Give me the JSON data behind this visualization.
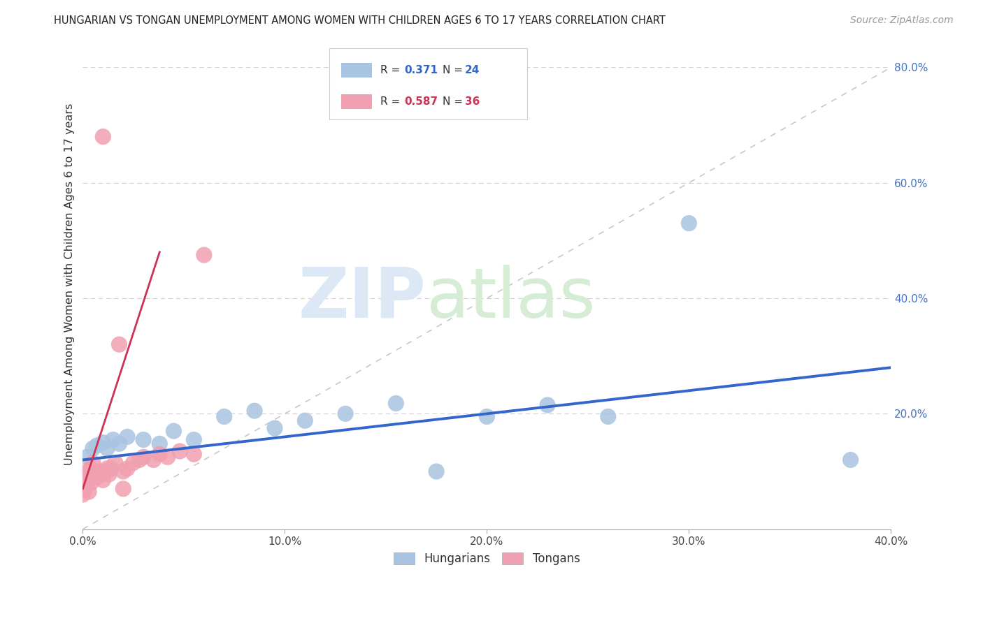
{
  "title": "HUNGARIAN VS TONGAN UNEMPLOYMENT AMONG WOMEN WITH CHILDREN AGES 6 TO 17 YEARS CORRELATION CHART",
  "source": "Source: ZipAtlas.com",
  "ylabel": "Unemployment Among Women with Children Ages 6 to 17 years",
  "xlim": [
    0.0,
    0.4
  ],
  "ylim": [
    0.0,
    0.85
  ],
  "xticks": [
    0.0,
    0.1,
    0.2,
    0.3,
    0.4
  ],
  "xtick_labels": [
    "0.0%",
    "10.0%",
    "20.0%",
    "30.0%",
    "40.0%"
  ],
  "yticks": [
    0.2,
    0.4,
    0.6,
    0.8
  ],
  "ytick_labels": [
    "20.0%",
    "40.0%",
    "60.0%",
    "80.0%"
  ],
  "hungarian_R": "0.371",
  "hungarian_N": "24",
  "tongan_R": "0.587",
  "tongan_N": "36",
  "hungarian_color": "#a8c4e0",
  "tongan_color": "#f0a0b0",
  "hungarian_line_color": "#3366cc",
  "tongan_line_color": "#cc3355",
  "legend_label_hungarian": "Hungarians",
  "legend_label_tongan": "Tongans",
  "background_color": "#ffffff",
  "grid_color": "#cccccc",
  "right_tick_color": "#4472c4",
  "hungarian_x": [
    0.002,
    0.005,
    0.007,
    0.01,
    0.012,
    0.015,
    0.018,
    0.022,
    0.03,
    0.038,
    0.045,
    0.055,
    0.07,
    0.085,
    0.095,
    0.11,
    0.13,
    0.155,
    0.175,
    0.2,
    0.23,
    0.26,
    0.3,
    0.38
  ],
  "hungarian_y": [
    0.125,
    0.14,
    0.145,
    0.15,
    0.14,
    0.155,
    0.148,
    0.16,
    0.155,
    0.148,
    0.17,
    0.155,
    0.195,
    0.205,
    0.175,
    0.188,
    0.2,
    0.218,
    0.1,
    0.195,
    0.215,
    0.195,
    0.53,
    0.12
  ],
  "tongan_x": [
    0.0,
    0.0,
    0.001,
    0.001,
    0.002,
    0.002,
    0.003,
    0.003,
    0.004,
    0.004,
    0.005,
    0.005,
    0.006,
    0.007,
    0.008,
    0.009,
    0.01,
    0.011,
    0.012,
    0.013,
    0.014,
    0.016,
    0.018,
    0.02,
    0.022,
    0.025,
    0.028,
    0.03,
    0.035,
    0.038,
    0.042,
    0.048,
    0.055,
    0.06,
    0.02,
    0.01
  ],
  "tongan_y": [
    0.06,
    0.09,
    0.07,
    0.095,
    0.075,
    0.1,
    0.065,
    0.085,
    0.08,
    0.105,
    0.09,
    0.115,
    0.095,
    0.09,
    0.1,
    0.095,
    0.085,
    0.1,
    0.105,
    0.095,
    0.105,
    0.115,
    0.32,
    0.1,
    0.105,
    0.115,
    0.12,
    0.125,
    0.12,
    0.13,
    0.125,
    0.135,
    0.13,
    0.475,
    0.07,
    0.68
  ]
}
